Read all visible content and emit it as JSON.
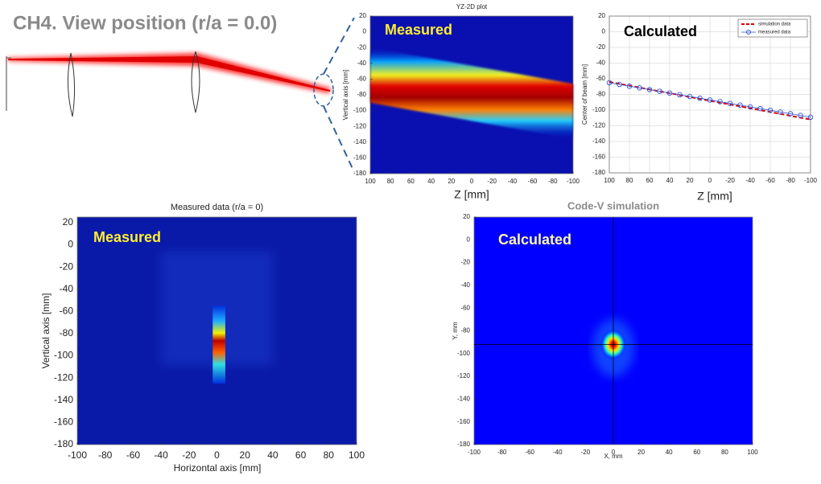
{
  "title": "CH4. View position (r/a = 0.0)",
  "chart_data": [
    {
      "type": "heatmap",
      "title": "YZ-2D plot",
      "annotation": "Measured",
      "xlabel": "Z [mm]",
      "ylabel": "Vertical axis [mm]",
      "xlim": [
        100,
        -100
      ],
      "ylim": [
        -180,
        20
      ],
      "xticks": [
        100,
        80,
        60,
        40,
        20,
        0,
        -20,
        -40,
        -60,
        -80,
        -100
      ],
      "yticks": [
        20,
        0,
        -20,
        -40,
        -60,
        -80,
        -100,
        -120,
        -140,
        -160,
        -180
      ]
    },
    {
      "type": "line",
      "annotation": "Calculated",
      "xlabel": "Z [mm]",
      "ylabel": "Center of beam [mm]",
      "xlim": [
        100,
        -100
      ],
      "ylim": [
        -180,
        20
      ],
      "xticks": [
        100,
        80,
        60,
        40,
        20,
        0,
        -20,
        -40,
        -60,
        -80,
        -100
      ],
      "yticks": [
        20,
        0,
        -20,
        -40,
        -60,
        -80,
        -100,
        -120,
        -140,
        -160,
        -180
      ],
      "grid": true,
      "legend": "upper-right",
      "x": [
        100,
        90,
        80,
        70,
        60,
        50,
        40,
        30,
        20,
        10,
        0,
        -10,
        -20,
        -30,
        -40,
        -50,
        -60,
        -70,
        -80,
        -90,
        -100
      ],
      "series": [
        {
          "name": "simulation data",
          "color": "#e00000",
          "values": [
            -64,
            -66.4,
            -68.8,
            -71.2,
            -73.6,
            -76,
            -78.4,
            -80.8,
            -83.2,
            -85.6,
            -88,
            -90.4,
            -92.8,
            -95.2,
            -97.6,
            -100,
            -102.4,
            -104.8,
            -107.2,
            -109.6,
            -112
          ]
        },
        {
          "name": "measured data",
          "color": "#3050d0",
          "values": [
            -65,
            -67.2,
            -69.4,
            -71.6,
            -73.8,
            -76,
            -78.2,
            -80.4,
            -82.6,
            -84.8,
            -87,
            -89.2,
            -91.4,
            -93.6,
            -95.8,
            -98,
            -100.2,
            -102.4,
            -104.6,
            -106.8,
            -109
          ]
        }
      ]
    },
    {
      "type": "heatmap",
      "title": "Measured data (r/a = 0)",
      "annotation": "Measured",
      "xlabel": "Horizontal axis [mm]",
      "ylabel": "Vertical axis [mm]",
      "xlim": [
        -100,
        100
      ],
      "ylim": [
        -180,
        25
      ],
      "xticks": [
        -100,
        -80,
        -60,
        -40,
        -20,
        0,
        20,
        40,
        60,
        80,
        100
      ],
      "yticks": [
        20,
        0,
        -20,
        -40,
        -60,
        -80,
        -100,
        -120,
        -140,
        -160,
        -180
      ]
    },
    {
      "type": "heatmap",
      "title": "Code-V simulation",
      "annotation": "Calculated",
      "xlabel": "X, mm",
      "ylabel": "Y, mm",
      "xlim": [
        -100,
        100
      ],
      "ylim": [
        -180,
        20
      ],
      "xticks": [
        -100,
        -80,
        -60,
        -40,
        -20,
        0,
        20,
        40,
        60,
        80,
        100
      ],
      "yticks": [
        20,
        0,
        -20,
        -40,
        -60,
        -80,
        -100,
        -120,
        -140,
        -160,
        -180
      ]
    }
  ]
}
